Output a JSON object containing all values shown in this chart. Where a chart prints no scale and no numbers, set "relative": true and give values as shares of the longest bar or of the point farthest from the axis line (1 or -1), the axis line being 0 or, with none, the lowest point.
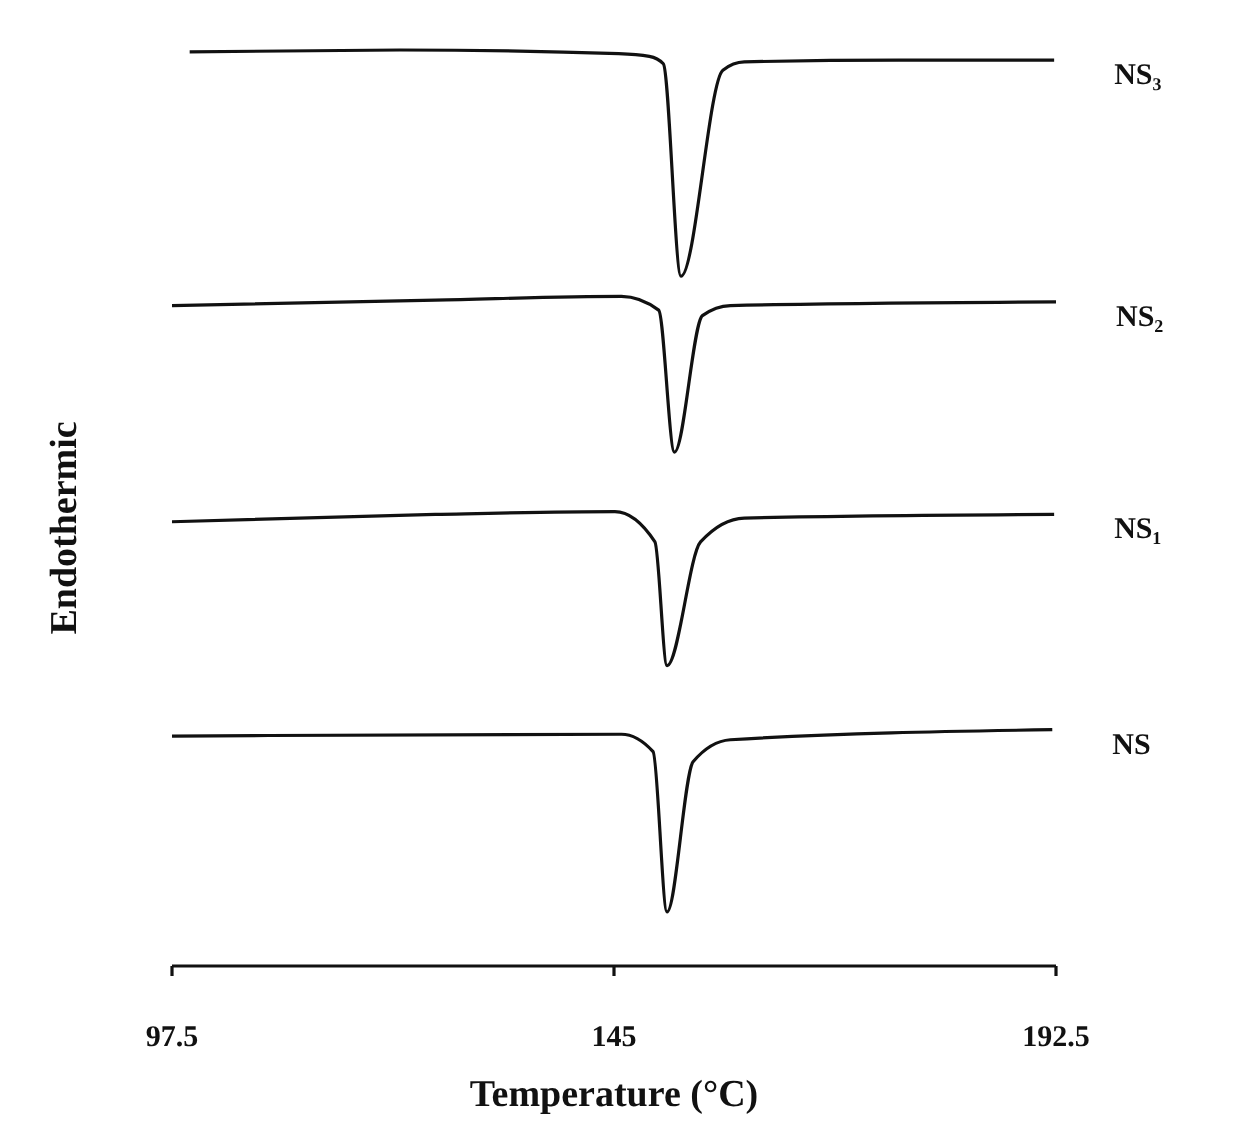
{
  "chart_data": {
    "type": "line",
    "relative": true,
    "xlabel": "Temperature (°C)",
    "ylabel": "Endothermic",
    "xlim": [
      97.5,
      192.5
    ],
    "xticks": [
      97.5,
      145,
      192.5
    ],
    "marker": "none",
    "line_style": "solid",
    "series": [
      {
        "name": "NS₃",
        "color": "#111111",
        "x": [
          99.4,
          122.0,
          145.5,
          148.8,
          150.3,
          152.2,
          156.7,
          159.0,
          175.6,
          192.3
        ],
        "values": [
          0.998,
          1.0,
          0.996,
          0.993,
          0.985,
          0.753,
          0.978,
          0.987,
          0.989,
          0.989
        ]
      },
      {
        "name": "NS₂",
        "color": "#111111",
        "x": [
          97.5,
          125.8,
          145.8,
          149.8,
          151.5,
          154.5,
          157.5,
          192.5
        ],
        "values": [
          0.721,
          0.727,
          0.731,
          0.716,
          0.561,
          0.71,
          0.721,
          0.725
        ]
      },
      {
        "name": "NS₁",
        "color": "#111111",
        "x": [
          97.5,
          125.8,
          145.1,
          149.4,
          150.7,
          154.3,
          159.0,
          192.3
        ],
        "values": [
          0.485,
          0.493,
          0.496,
          0.463,
          0.328,
          0.463,
          0.489,
          0.493
        ]
      },
      {
        "name": "NS",
        "color": "#111111",
        "x": [
          97.5,
          145.8,
          149.2,
          150.7,
          153.5,
          157.5,
          192.1
        ],
        "values": [
          0.251,
          0.253,
          0.234,
          0.059,
          0.223,
          0.247,
          0.258
        ]
      }
    ]
  }
}
